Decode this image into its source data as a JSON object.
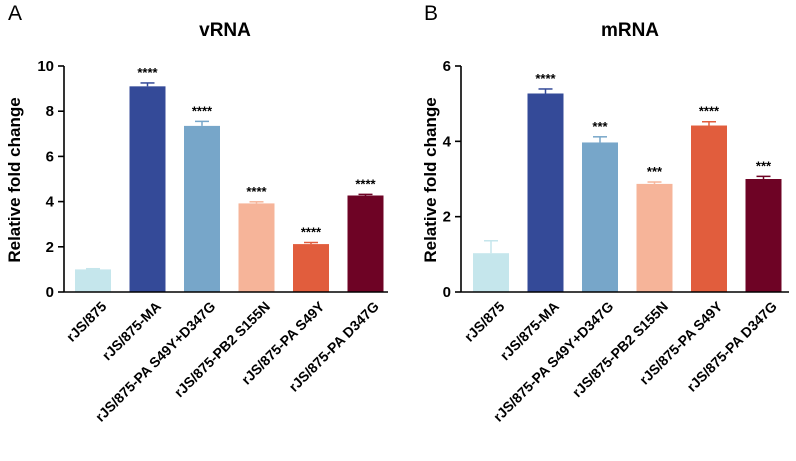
{
  "chart_data": [
    {
      "panel": "A",
      "type": "bar",
      "title": "vRNA",
      "ylabel": "Relative fold change",
      "xlabel": "",
      "ylim": [
        0,
        10
      ],
      "yticks": [
        "0",
        "2",
        "4",
        "6",
        "8",
        "10"
      ],
      "categories": [
        "rJS/875",
        "rJS/875-MA",
        "rJS/875-PA S49Y+D347G",
        "rJS/875-PB2 S155N",
        "rJS/875-PA S49Y",
        "rJS/875-PA D347G"
      ],
      "values": [
        1.0,
        9.1,
        7.35,
        3.92,
        2.12,
        4.27
      ],
      "errors": [
        0.03,
        0.15,
        0.2,
        0.07,
        0.07,
        0.05
      ],
      "significance": [
        "",
        "****",
        "****",
        "****",
        "****",
        "****"
      ],
      "colors": [
        "#c5e6ec",
        "#344a98",
        "#77a6c9",
        "#f6b499",
        "#e15d3d",
        "#6e0325"
      ]
    },
    {
      "panel": "B",
      "type": "bar",
      "title": "mRNA",
      "ylabel": "Relative fold change",
      "xlabel": "",
      "ylim": [
        0,
        6
      ],
      "yticks": [
        "0",
        "2",
        "4",
        "6"
      ],
      "categories": [
        "rJS/875",
        "rJS/875-MA",
        "rJS/875-PA S49Y+D347G",
        "rJS/875-PB2 S155N",
        "rJS/875-PA S49Y",
        "rJS/875-PA D347G"
      ],
      "values": [
        1.03,
        5.27,
        3.97,
        2.87,
        4.42,
        3.0
      ],
      "errors": [
        0.33,
        0.12,
        0.15,
        0.05,
        0.1,
        0.07
      ],
      "significance": [
        "",
        "****",
        "***",
        "***",
        "****",
        "***"
      ],
      "colors": [
        "#c5e6ec",
        "#344a98",
        "#77a6c9",
        "#f6b499",
        "#e15d3d",
        "#6e0325"
      ]
    }
  ]
}
